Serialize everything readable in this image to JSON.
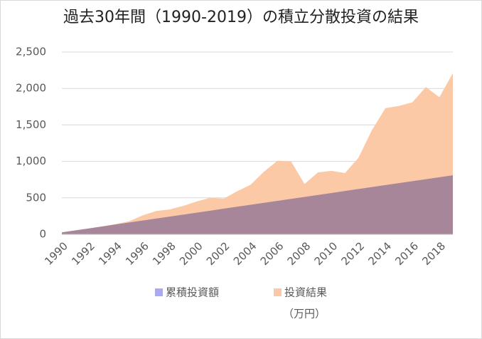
{
  "chart_data": {
    "type": "area",
    "title": "過去30年間（1990-2019）の積立分散投資の結果",
    "unit_label": "（万円）",
    "categories": [
      "1990",
      null,
      "1992",
      null,
      "1994",
      null,
      "1996",
      null,
      "1998",
      null,
      "2000",
      null,
      "2002",
      null,
      "2004",
      null,
      "2006",
      null,
      "2008",
      null,
      "2010",
      null,
      "2012",
      null,
      "2014",
      null,
      "2016",
      null,
      "2018",
      null
    ],
    "series": [
      {
        "name": "累積投資額",
        "color": "#aaaaee",
        "values": [
          27,
          54,
          81,
          108,
          135,
          162,
          189,
          216,
          243,
          270,
          297,
          324,
          351,
          378,
          405,
          432,
          459,
          486,
          513,
          540,
          567,
          594,
          621,
          648,
          675,
          702,
          729,
          756,
          783,
          810
        ]
      },
      {
        "name": "投資結果",
        "color": "#fbc9a5",
        "values": [
          27,
          55,
          80,
          110,
          140,
          180,
          260,
          320,
          340,
          390,
          450,
          500,
          490,
          590,
          680,
          860,
          1010,
          1000,
          690,
          850,
          870,
          840,
          1050,
          1430,
          1730,
          1760,
          1810,
          2020,
          1880,
          2210
        ]
      }
    ],
    "ylim": [
      0,
      2500
    ],
    "yticks": [
      0,
      500,
      {
        "value": 1000,
        "label": "1,000"
      },
      {
        "value": 1500,
        "label": "1,500"
      },
      {
        "value": 2000,
        "label": "2,000"
      },
      {
        "value": 2500,
        "label": "2,500"
      }
    ],
    "grid": true
  }
}
